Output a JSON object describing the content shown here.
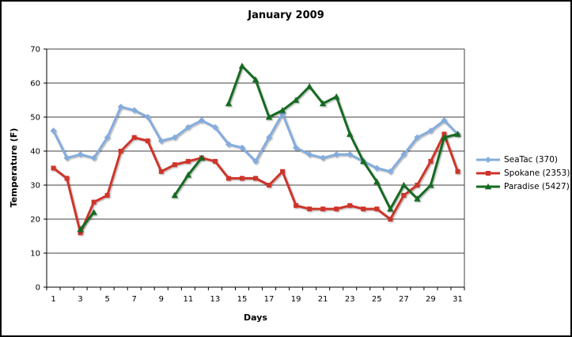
{
  "frame": {
    "background": "#ffffff",
    "border_color": "#000000"
  },
  "chart_data": {
    "type": "line",
    "title": "January 2009",
    "xlabel": "Days",
    "ylabel": "Temperature (F)",
    "x": [
      1,
      2,
      3,
      4,
      5,
      6,
      7,
      8,
      9,
      10,
      11,
      12,
      13,
      14,
      15,
      16,
      17,
      18,
      19,
      20,
      21,
      22,
      23,
      24,
      25,
      26,
      27,
      28,
      29,
      30,
      31
    ],
    "x_labeled_ticks": [
      1,
      3,
      5,
      7,
      9,
      11,
      13,
      15,
      17,
      19,
      21,
      23,
      25,
      27,
      29,
      31
    ],
    "ylim": [
      0,
      70
    ],
    "y_tick_step": 10,
    "grid": "horizontal",
    "gridline_color": "#404040",
    "axis_color": "#000000",
    "legend_position": "right",
    "series": [
      {
        "name": "SeaTac (370)",
        "key": "seatac",
        "color": "#84ACDC",
        "marker": "diamond",
        "values": [
          46,
          38,
          39,
          38,
          44,
          53,
          52,
          50,
          43,
          44,
          47,
          49,
          47,
          42,
          41,
          37,
          44,
          51,
          41,
          39,
          38,
          39,
          39,
          37,
          35,
          34,
          39,
          44,
          46,
          49,
          45
        ]
      },
      {
        "name": "Spokane (2353)",
        "key": "spokane",
        "color": "#CE342B",
        "marker": "square",
        "values": [
          35,
          32,
          16,
          25,
          27,
          40,
          44,
          43,
          34,
          36,
          37,
          38,
          37,
          32,
          32,
          32,
          30,
          34,
          24,
          23,
          23,
          23,
          24,
          23,
          23,
          20,
          27,
          30,
          37,
          45,
          34
        ]
      },
      {
        "name": "Paradise (5427)",
        "key": "paradise",
        "color": "#156B22",
        "marker": "triangle",
        "values": [
          null,
          null,
          17,
          22,
          null,
          null,
          null,
          null,
          null,
          27,
          33,
          38,
          null,
          54,
          65,
          61,
          50,
          52,
          55,
          59,
          54,
          56,
          45,
          37,
          31,
          23,
          30,
          26,
          30,
          44,
          45
        ]
      }
    ]
  }
}
